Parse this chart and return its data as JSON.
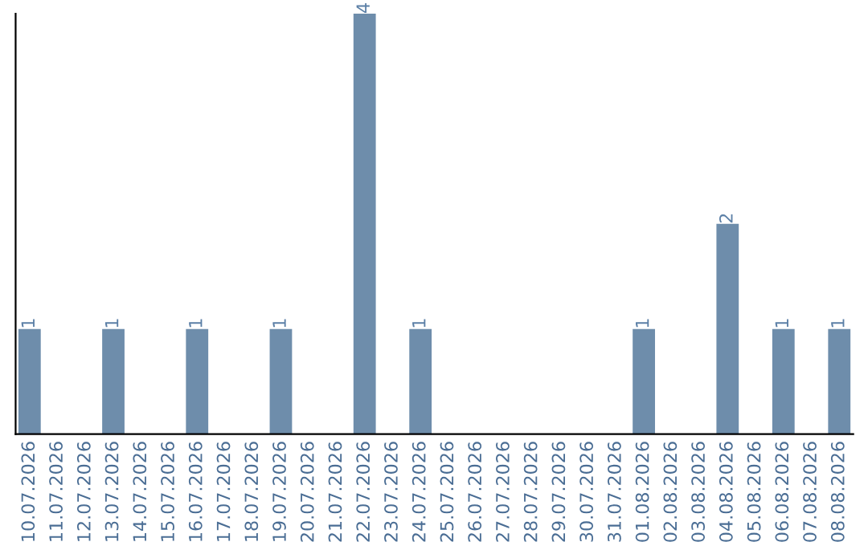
{
  "chart_data": {
    "type": "bar",
    "categories": [
      "10.07.2026",
      "11.07.2026",
      "12.07.2026",
      "13.07.2026",
      "14.07.2026",
      "15.07.2026",
      "16.07.2026",
      "17.07.2026",
      "18.07.2026",
      "19.07.2026",
      "20.07.2026",
      "21.07.2026",
      "22.07.2026",
      "23.07.2026",
      "24.07.2026",
      "25.07.2026",
      "26.07.2026",
      "27.07.2026",
      "28.07.2026",
      "29.07.2026",
      "30.07.2026",
      "31.07.2026",
      "01.08.2026",
      "02.08.2026",
      "03.08.2026",
      "04.08.2026",
      "05.08.2026",
      "06.08.2026",
      "07.08.2026",
      "08.08.2026"
    ],
    "values": [
      1,
      0,
      0,
      1,
      0,
      0,
      1,
      0,
      0,
      1,
      0,
      0,
      4,
      0,
      1,
      0,
      0,
      0,
      0,
      0,
      0,
      0,
      1,
      0,
      0,
      2,
      0,
      1,
      0,
      1
    ],
    "value_labels": [
      "1",
      null,
      null,
      "1",
      null,
      null,
      "1",
      null,
      null,
      "1",
      null,
      null,
      "4",
      null,
      "1",
      null,
      null,
      null,
      null,
      null,
      null,
      null,
      "1",
      null,
      null,
      "2",
      null,
      "1",
      null,
      "1"
    ],
    "color": "#6e8dab",
    "grid": false,
    "legend": false
  }
}
